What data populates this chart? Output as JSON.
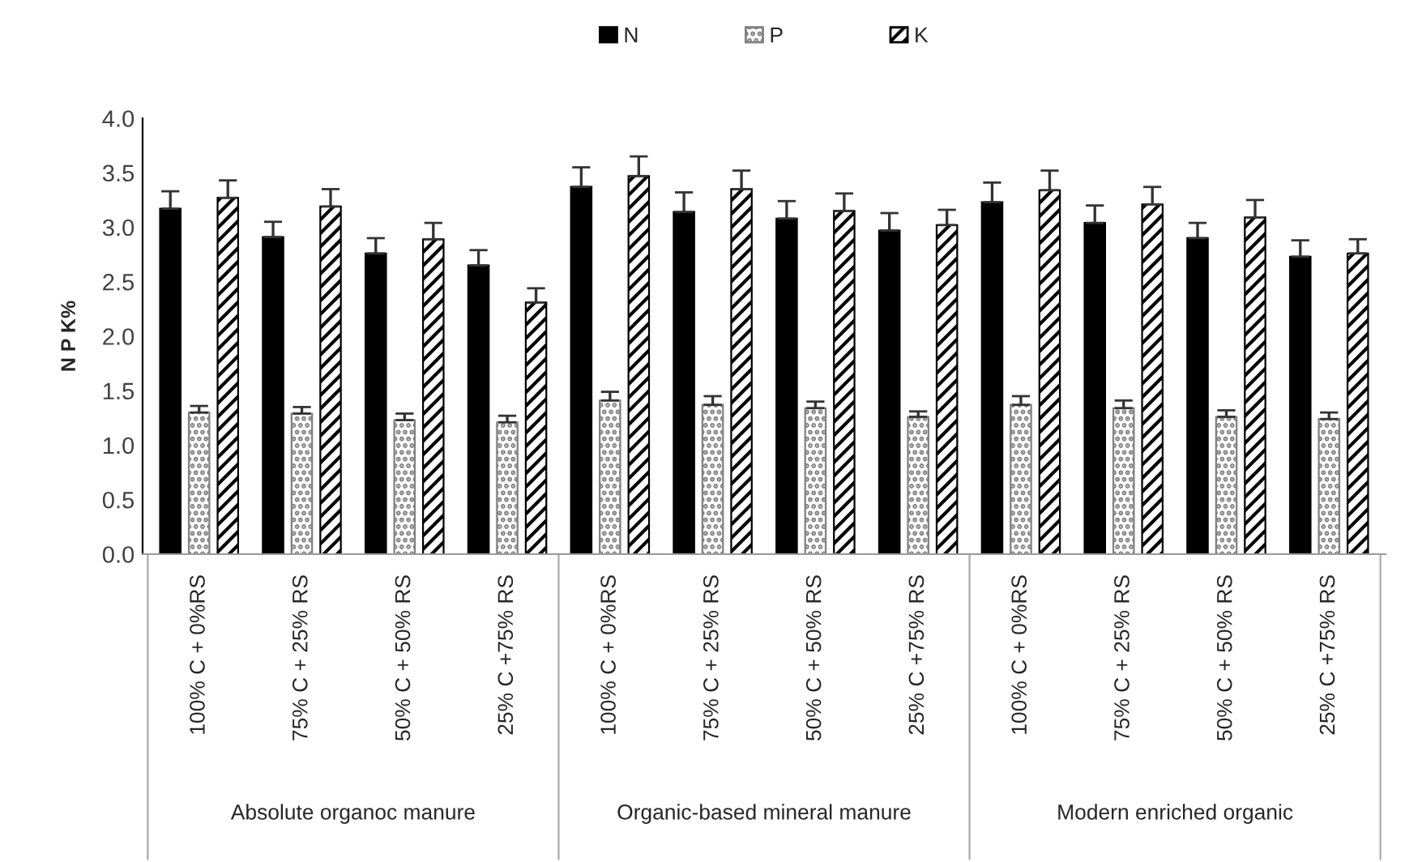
{
  "chart_data": {
    "type": "bar",
    "ylabel": "N P K%",
    "categories": [
      "100% C + 0%RS",
      "75% C + 25% RS",
      "50% C + 50% RS",
      "25% C +75% RS",
      "100% C + 0%RS",
      "75% C + 25% RS",
      "50% C + 50% RS",
      "25% C +75% RS",
      "100% C + 0%RS",
      "75% C + 25% RS",
      "50% C + 50% RS",
      "25% C +75% RS"
    ],
    "series": [
      {
        "name": "N",
        "color": "#000000",
        "values": [
          3.17,
          2.91,
          2.76,
          2.65,
          3.37,
          3.14,
          3.08,
          2.97,
          3.23,
          3.04,
          2.9,
          2.73
        ],
        "errors": [
          [
            3.17,
            3.33
          ],
          [
            2.91,
            3.05
          ],
          [
            2.76,
            2.9
          ],
          [
            2.65,
            2.79
          ],
          [
            3.37,
            3.55
          ],
          [
            3.14,
            3.32
          ],
          [
            3.08,
            3.24
          ],
          [
            2.97,
            3.13
          ],
          [
            3.23,
            3.41
          ],
          [
            3.04,
            3.2
          ],
          [
            2.9,
            3.04
          ],
          [
            2.73,
            2.88
          ]
        ]
      },
      {
        "name": "P",
        "color": "#808080",
        "values": [
          1.3,
          1.29,
          1.23,
          1.21,
          1.41,
          1.37,
          1.34,
          1.26,
          1.37,
          1.34,
          1.26,
          1.24
        ],
        "errors": [
          [
            1.3,
            1.36
          ],
          [
            1.29,
            1.35
          ],
          [
            1.23,
            1.29
          ],
          [
            1.21,
            1.27
          ],
          [
            1.41,
            1.49
          ],
          [
            1.37,
            1.45
          ],
          [
            1.34,
            1.4
          ],
          [
            1.26,
            1.31
          ],
          [
            1.37,
            1.45
          ],
          [
            1.34,
            1.41
          ],
          [
            1.26,
            1.32
          ],
          [
            1.24,
            1.3
          ]
        ]
      },
      {
        "name": "K",
        "color": "#000000",
        "values": [
          3.27,
          3.19,
          2.89,
          2.31,
          3.47,
          3.35,
          3.15,
          3.02,
          3.34,
          3.21,
          3.09,
          2.76
        ],
        "errors": [
          [
            3.27,
            3.43
          ],
          [
            3.19,
            3.35
          ],
          [
            2.89,
            3.04
          ],
          [
            2.31,
            2.44
          ],
          [
            3.47,
            3.65
          ],
          [
            3.35,
            3.52
          ],
          [
            3.15,
            3.31
          ],
          [
            3.02,
            3.16
          ],
          [
            3.34,
            3.52
          ],
          [
            3.21,
            3.37
          ],
          [
            3.09,
            3.25
          ],
          [
            2.76,
            2.89
          ]
        ]
      }
    ],
    "annotations": [
      "Absolute organoc manure",
      "Organic-based mineral manure",
      "Modern enriched organic"
    ],
    "ylim": [
      0,
      4.0
    ],
    "yticks": [
      {
        "value": 0,
        "label": "0.0"
      },
      {
        "value": 0.5,
        "label": "0.5"
      },
      {
        "value": 1.0,
        "label": "1.0"
      },
      {
        "value": 1.5,
        "label": "1.5"
      },
      {
        "value": 2.0,
        "label": "2.0"
      },
      {
        "value": 2.5,
        "label": "2.5"
      },
      {
        "value": 3.0,
        "label": "3.0"
      },
      {
        "value": 3.5,
        "label": "3.5"
      },
      {
        "value": 4.0,
        "label": "4.0"
      }
    ],
    "grid": false,
    "legend": "top"
  }
}
